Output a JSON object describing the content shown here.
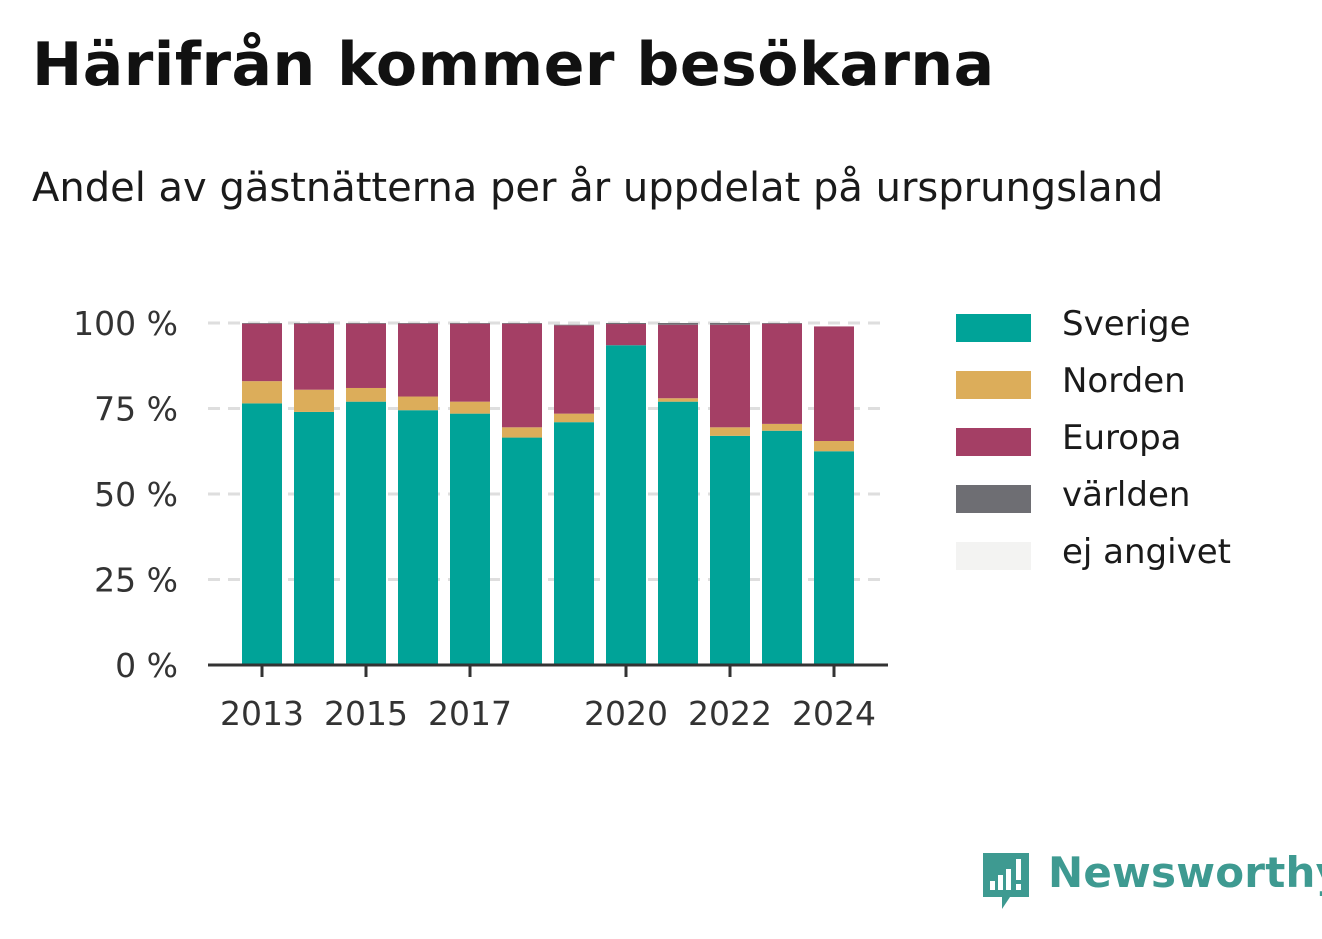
{
  "title": "Härifrån kommer besökarna",
  "subtitle": "Andel av gästnätterna per år uppdelat på ursprungsland",
  "brand": {
    "name": "Newsworthy",
    "icon": "newsworthy-logo-icon",
    "color": "#3e9a91"
  },
  "chart_data": {
    "type": "bar",
    "stacked": true,
    "categories": [
      "2013",
      "2014",
      "2015",
      "2016",
      "2017",
      "2018",
      "2019",
      "2020",
      "2021",
      "2022",
      "2023",
      "2024"
    ],
    "x_tick_labels": [
      "2013",
      "",
      "2015",
      "",
      "2017",
      "",
      "",
      "2020",
      "",
      "2022",
      "",
      "2024"
    ],
    "series": [
      {
        "name": "Sverige",
        "color": "#00a398",
        "values": [
          76.5,
          74.0,
          77.0,
          74.5,
          73.5,
          66.5,
          71.0,
          93.5,
          77.0,
          67.0,
          68.5,
          62.5
        ]
      },
      {
        "name": "Norden",
        "color": "#dcad5a",
        "values": [
          6.5,
          6.5,
          4.0,
          4.0,
          3.5,
          3.0,
          2.5,
          0.0,
          1.0,
          2.5,
          2.0,
          3.0
        ]
      },
      {
        "name": "Europa",
        "color": "#a43f65",
        "values": [
          16.8,
          19.3,
          18.8,
          21.3,
          22.8,
          30.3,
          25.8,
          6.2,
          21.5,
          30.0,
          29.3,
          33.5
        ]
      },
      {
        "name": "världen",
        "color": "#6e6e73",
        "values": [
          0.2,
          0.2,
          0.2,
          0.2,
          0.2,
          0.2,
          0.2,
          0.3,
          0.5,
          0.5,
          0.2,
          0.0
        ]
      },
      {
        "name": "ej angivet",
        "color": "#f3f3f2",
        "values": [
          0.0,
          0.0,
          0.0,
          0.0,
          0.0,
          0.0,
          0.0,
          0.0,
          0.0,
          0.0,
          0.0,
          0.0
        ]
      }
    ],
    "yticks": [
      "0 %",
      "25 %",
      "50 %",
      "75 %",
      "100 %"
    ],
    "ylim": [
      0,
      100
    ],
    "grid": true,
    "legend_position": "right"
  }
}
